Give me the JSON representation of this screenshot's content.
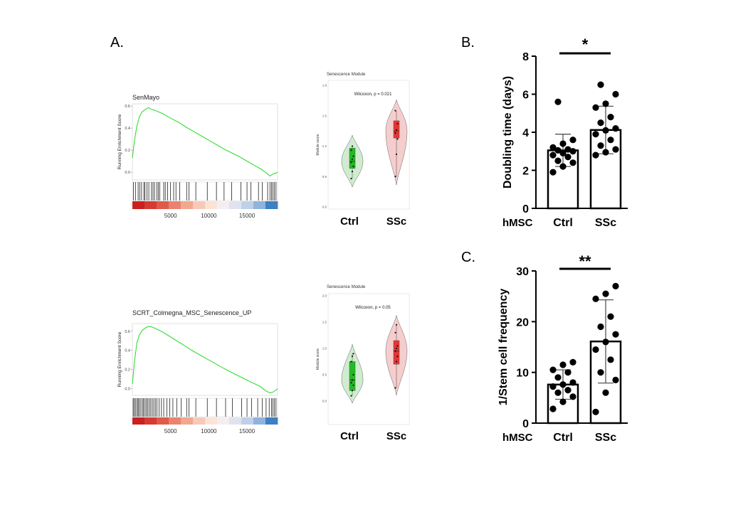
{
  "panel_labels": {
    "a": "A.",
    "b": "B.",
    "c": "C."
  },
  "chart_data": [
    {
      "id": "gsea-senmayo",
      "type": "line",
      "title": "SenMayo",
      "ylabel": "Running Enrichment Score",
      "xlim": [
        0,
        19000
      ],
      "ylim": [
        -0.07,
        0.62
      ],
      "yticks": [
        "0.6",
        "0.4",
        "0.2",
        "0.0"
      ],
      "xticks": [
        "5000",
        "10000",
        "15000"
      ],
      "line_color": "#33dd33",
      "x": [
        0,
        300,
        600,
        900,
        1300,
        1700,
        2100,
        2500,
        3000,
        4000,
        5000,
        6000,
        7000,
        8000,
        9000,
        10000,
        11000,
        12000,
        13000,
        14000,
        15000,
        16000,
        16800,
        17400,
        18000,
        18400,
        18700,
        19000
      ],
      "y": [
        0.13,
        0.3,
        0.42,
        0.5,
        0.55,
        0.57,
        0.585,
        0.57,
        0.56,
        0.53,
        0.49,
        0.455,
        0.41,
        0.37,
        0.33,
        0.29,
        0.25,
        0.21,
        0.175,
        0.14,
        0.1,
        0.06,
        0.03,
        0.0,
        -0.035,
        -0.015,
        -0.01,
        0.0
      ],
      "hits": [
        150,
        400,
        750,
        950,
        1200,
        1500,
        1650,
        1900,
        2150,
        2500,
        2700,
        2900,
        3200,
        3400,
        3600,
        4100,
        4300,
        4600,
        5000,
        5400,
        5700,
        6200,
        7100,
        7400,
        8300,
        9800,
        11000,
        12000,
        13000,
        14200,
        15000,
        15500,
        16500,
        17000,
        17700,
        18000,
        18200,
        18400,
        18600,
        18800
      ]
    },
    {
      "id": "violin-senescence-1",
      "type": "violin",
      "title": "Senescence Module",
      "ylabel": "Module score",
      "annotation": "Wilcoxon, p = 0.021",
      "categories": [
        "Ctrl",
        "SSc"
      ],
      "colors": {
        "Ctrl": "#22bb22",
        "SSc": "#e83333"
      },
      "fill_colors": {
        "Ctrl": "#cfeccf",
        "SSc": "#f6cdcd"
      },
      "ylim": [
        0.6,
        1.8
      ],
      "yticks": [
        "0.6",
        "0.9",
        "1.2",
        "1.5",
        "1.8"
      ],
      "points": {
        "Ctrl": [
          0.88,
          0.95,
          1.0,
          1.04,
          1.07,
          1.1,
          1.16,
          1.2
        ],
        "SSc": [
          0.9,
          1.12,
          1.27,
          1.33,
          1.36,
          1.42,
          1.55
        ]
      },
      "box": {
        "Ctrl": [
          0.98,
          1.05,
          1.18
        ],
        "SSc": [
          1.28,
          1.35,
          1.45
        ]
      }
    },
    {
      "id": "bar-doubling-time",
      "type": "bar",
      "ylabel": "Doubling time (days)",
      "xlabel": "hMSC",
      "categories": [
        "Ctrl",
        "SSc"
      ],
      "values": [
        3.05,
        4.12
      ],
      "errors": [
        0.85,
        1.25
      ],
      "significance": "*",
      "ylim": [
        0,
        8
      ],
      "yticks": [
        "0",
        "2",
        "4",
        "6",
        "8"
      ],
      "points": {
        "Ctrl": [
          1.9,
          2.2,
          2.4,
          2.5,
          2.7,
          2.8,
          2.9,
          3.0,
          3.05,
          3.1,
          3.2,
          3.4,
          3.6,
          5.6
        ],
        "SSc": [
          2.8,
          2.95,
          3.1,
          3.3,
          3.6,
          3.9,
          4.1,
          4.2,
          4.5,
          4.8,
          5.3,
          5.5,
          6.0,
          6.5
        ]
      }
    },
    {
      "id": "gsea-scrt",
      "type": "line",
      "title": "SCRT_Colmegna_MSC_Senescence_UP",
      "ylabel": "Running Enrichment Score",
      "xlim": [
        0,
        19000
      ],
      "ylim": [
        -0.07,
        0.68
      ],
      "yticks": [
        "0.6",
        "0.4",
        "0.2",
        "0.0"
      ],
      "xticks": [
        "5000",
        "10000",
        "15000"
      ],
      "line_color": "#33dd33",
      "x": [
        0,
        300,
        600,
        900,
        1300,
        1700,
        2100,
        2500,
        3000,
        4000,
        5000,
        6000,
        7000,
        8000,
        9000,
        10000,
        11000,
        12000,
        13000,
        14000,
        15000,
        16000,
        16800,
        17400,
        18000,
        18400,
        18700,
        19000
      ],
      "y": [
        0.05,
        0.3,
        0.48,
        0.56,
        0.61,
        0.635,
        0.65,
        0.645,
        0.63,
        0.59,
        0.54,
        0.49,
        0.44,
        0.39,
        0.345,
        0.3,
        0.255,
        0.21,
        0.17,
        0.13,
        0.09,
        0.05,
        0.02,
        -0.02,
        -0.045,
        -0.035,
        -0.02,
        0.0
      ],
      "hits": [
        100,
        250,
        400,
        600,
        750,
        900,
        1100,
        1300,
        1450,
        1650,
        1800,
        2000,
        2200,
        2400,
        2600,
        2800,
        3000,
        3200,
        3500,
        3800,
        4100,
        4500,
        4900,
        5300,
        5800,
        6400,
        7100,
        7400,
        8300,
        9800,
        11000,
        12200,
        13100,
        14300,
        15000,
        15600,
        16400,
        17000,
        17500,
        17900,
        18200,
        18400,
        18600,
        18800
      ]
    },
    {
      "id": "violin-senescence-2",
      "type": "violin",
      "title": "Senescence Module",
      "ylabel": "Module score",
      "annotation": "Wilcoxon, p = 0.05",
      "categories": [
        "Ctrl",
        "SSc"
      ],
      "colors": {
        "Ctrl": "#22bb22",
        "SSc": "#e83333"
      },
      "fill_colors": {
        "Ctrl": "#cfeccf",
        "SSc": "#f6cdcd"
      },
      "ylim": [
        -0.5,
        2.0
      ],
      "yticks": [
        "0.0",
        "0.5",
        "1.0",
        "1.5",
        "2.0"
      ],
      "points": {
        "Ctrl": [
          0.1,
          0.2,
          0.3,
          0.35,
          0.4,
          0.5,
          0.75,
          0.85,
          0.9
        ],
        "SSc": [
          0.25,
          0.75,
          0.85,
          0.95,
          1.0,
          1.05,
          1.3,
          1.45
        ]
      },
      "box": {
        "Ctrl": [
          0.2,
          0.4,
          0.75
        ],
        "SSc": [
          0.7,
          0.95,
          1.15
        ]
      }
    },
    {
      "id": "bar-stem-cell-frequency",
      "type": "bar",
      "ylabel": "1/Stem cell frequency",
      "xlabel": "hMSC",
      "categories": [
        "Ctrl",
        "SSc"
      ],
      "values": [
        7.6,
        16.1
      ],
      "errors": [
        2.9,
        8.2
      ],
      "significance": "**",
      "ylim": [
        0,
        30
      ],
      "yticks": [
        "0",
        "10",
        "20",
        "30"
      ],
      "points": {
        "Ctrl": [
          2.8,
          4.2,
          5.2,
          6.0,
          6.5,
          7.2,
          7.6,
          8.0,
          9.0,
          10.0,
          10.5,
          11.5,
          12.0
        ],
        "SSc": [
          2.2,
          6.0,
          8.5,
          10.0,
          12.5,
          14.5,
          16.0,
          17.5,
          19.0,
          21.0,
          24.5,
          25.5,
          27.0
        ]
      }
    }
  ]
}
